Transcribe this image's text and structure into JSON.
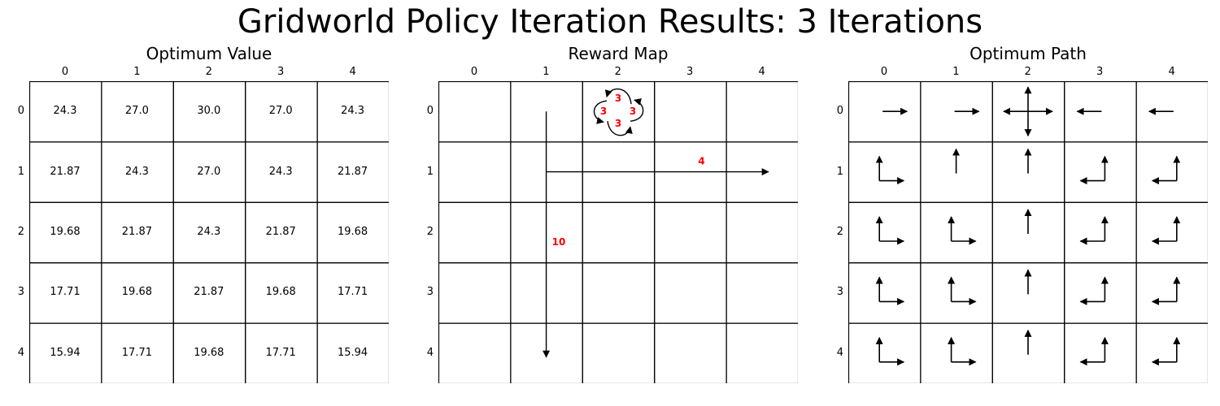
{
  "title": "Gridworld Policy Iteration Results: 3 Iterations",
  "panels": {
    "value": {
      "title": "Optimum Value"
    },
    "reward": {
      "title": "Reward Map"
    },
    "path": {
      "title": "Optimum Path"
    }
  },
  "col_ticks": [
    "0",
    "1",
    "2",
    "3",
    "4"
  ],
  "row_ticks": [
    "0",
    "1",
    "2",
    "3",
    "4"
  ],
  "values": [
    [
      "24.3",
      "27.0",
      "30.0",
      "27.0",
      "24.3"
    ],
    [
      "21.87",
      "24.3",
      "27.0",
      "24.3",
      "21.87"
    ],
    [
      "19.68",
      "21.87",
      "24.3",
      "21.87",
      "19.68"
    ],
    [
      "17.71",
      "19.68",
      "21.87",
      "19.68",
      "17.71"
    ],
    [
      "15.94",
      "17.71",
      "19.68",
      "17.71",
      "15.94"
    ]
  ],
  "rewards": {
    "self_loop_cell": [
      0,
      2
    ],
    "self_loop_labels": [
      "3",
      "3",
      "3",
      "3"
    ],
    "horizontal": {
      "from": [
        0,
        1
      ],
      "to": [
        1,
        4
      ],
      "label": "4"
    },
    "vertical": {
      "from": [
        0,
        1
      ],
      "to": [
        4,
        1
      ],
      "label": "10"
    },
    "color": "#ff0000"
  },
  "policy": [
    [
      [
        "right"
      ],
      [
        "right"
      ],
      [
        "up",
        "down",
        "left",
        "right"
      ],
      [
        "left"
      ],
      [
        "left"
      ]
    ],
    [
      [
        "up",
        "right"
      ],
      [
        "up"
      ],
      [
        "up"
      ],
      [
        "up",
        "left"
      ],
      [
        "up",
        "left"
      ]
    ],
    [
      [
        "up",
        "right"
      ],
      [
        "up",
        "right"
      ],
      [
        "up"
      ],
      [
        "up",
        "left"
      ],
      [
        "up",
        "left"
      ]
    ],
    [
      [
        "up",
        "right"
      ],
      [
        "up",
        "right"
      ],
      [
        "up"
      ],
      [
        "up",
        "left"
      ],
      [
        "up",
        "left"
      ]
    ],
    [
      [
        "up",
        "right"
      ],
      [
        "up",
        "right"
      ],
      [
        "up"
      ],
      [
        "up",
        "left"
      ],
      [
        "up",
        "left"
      ]
    ]
  ]
}
